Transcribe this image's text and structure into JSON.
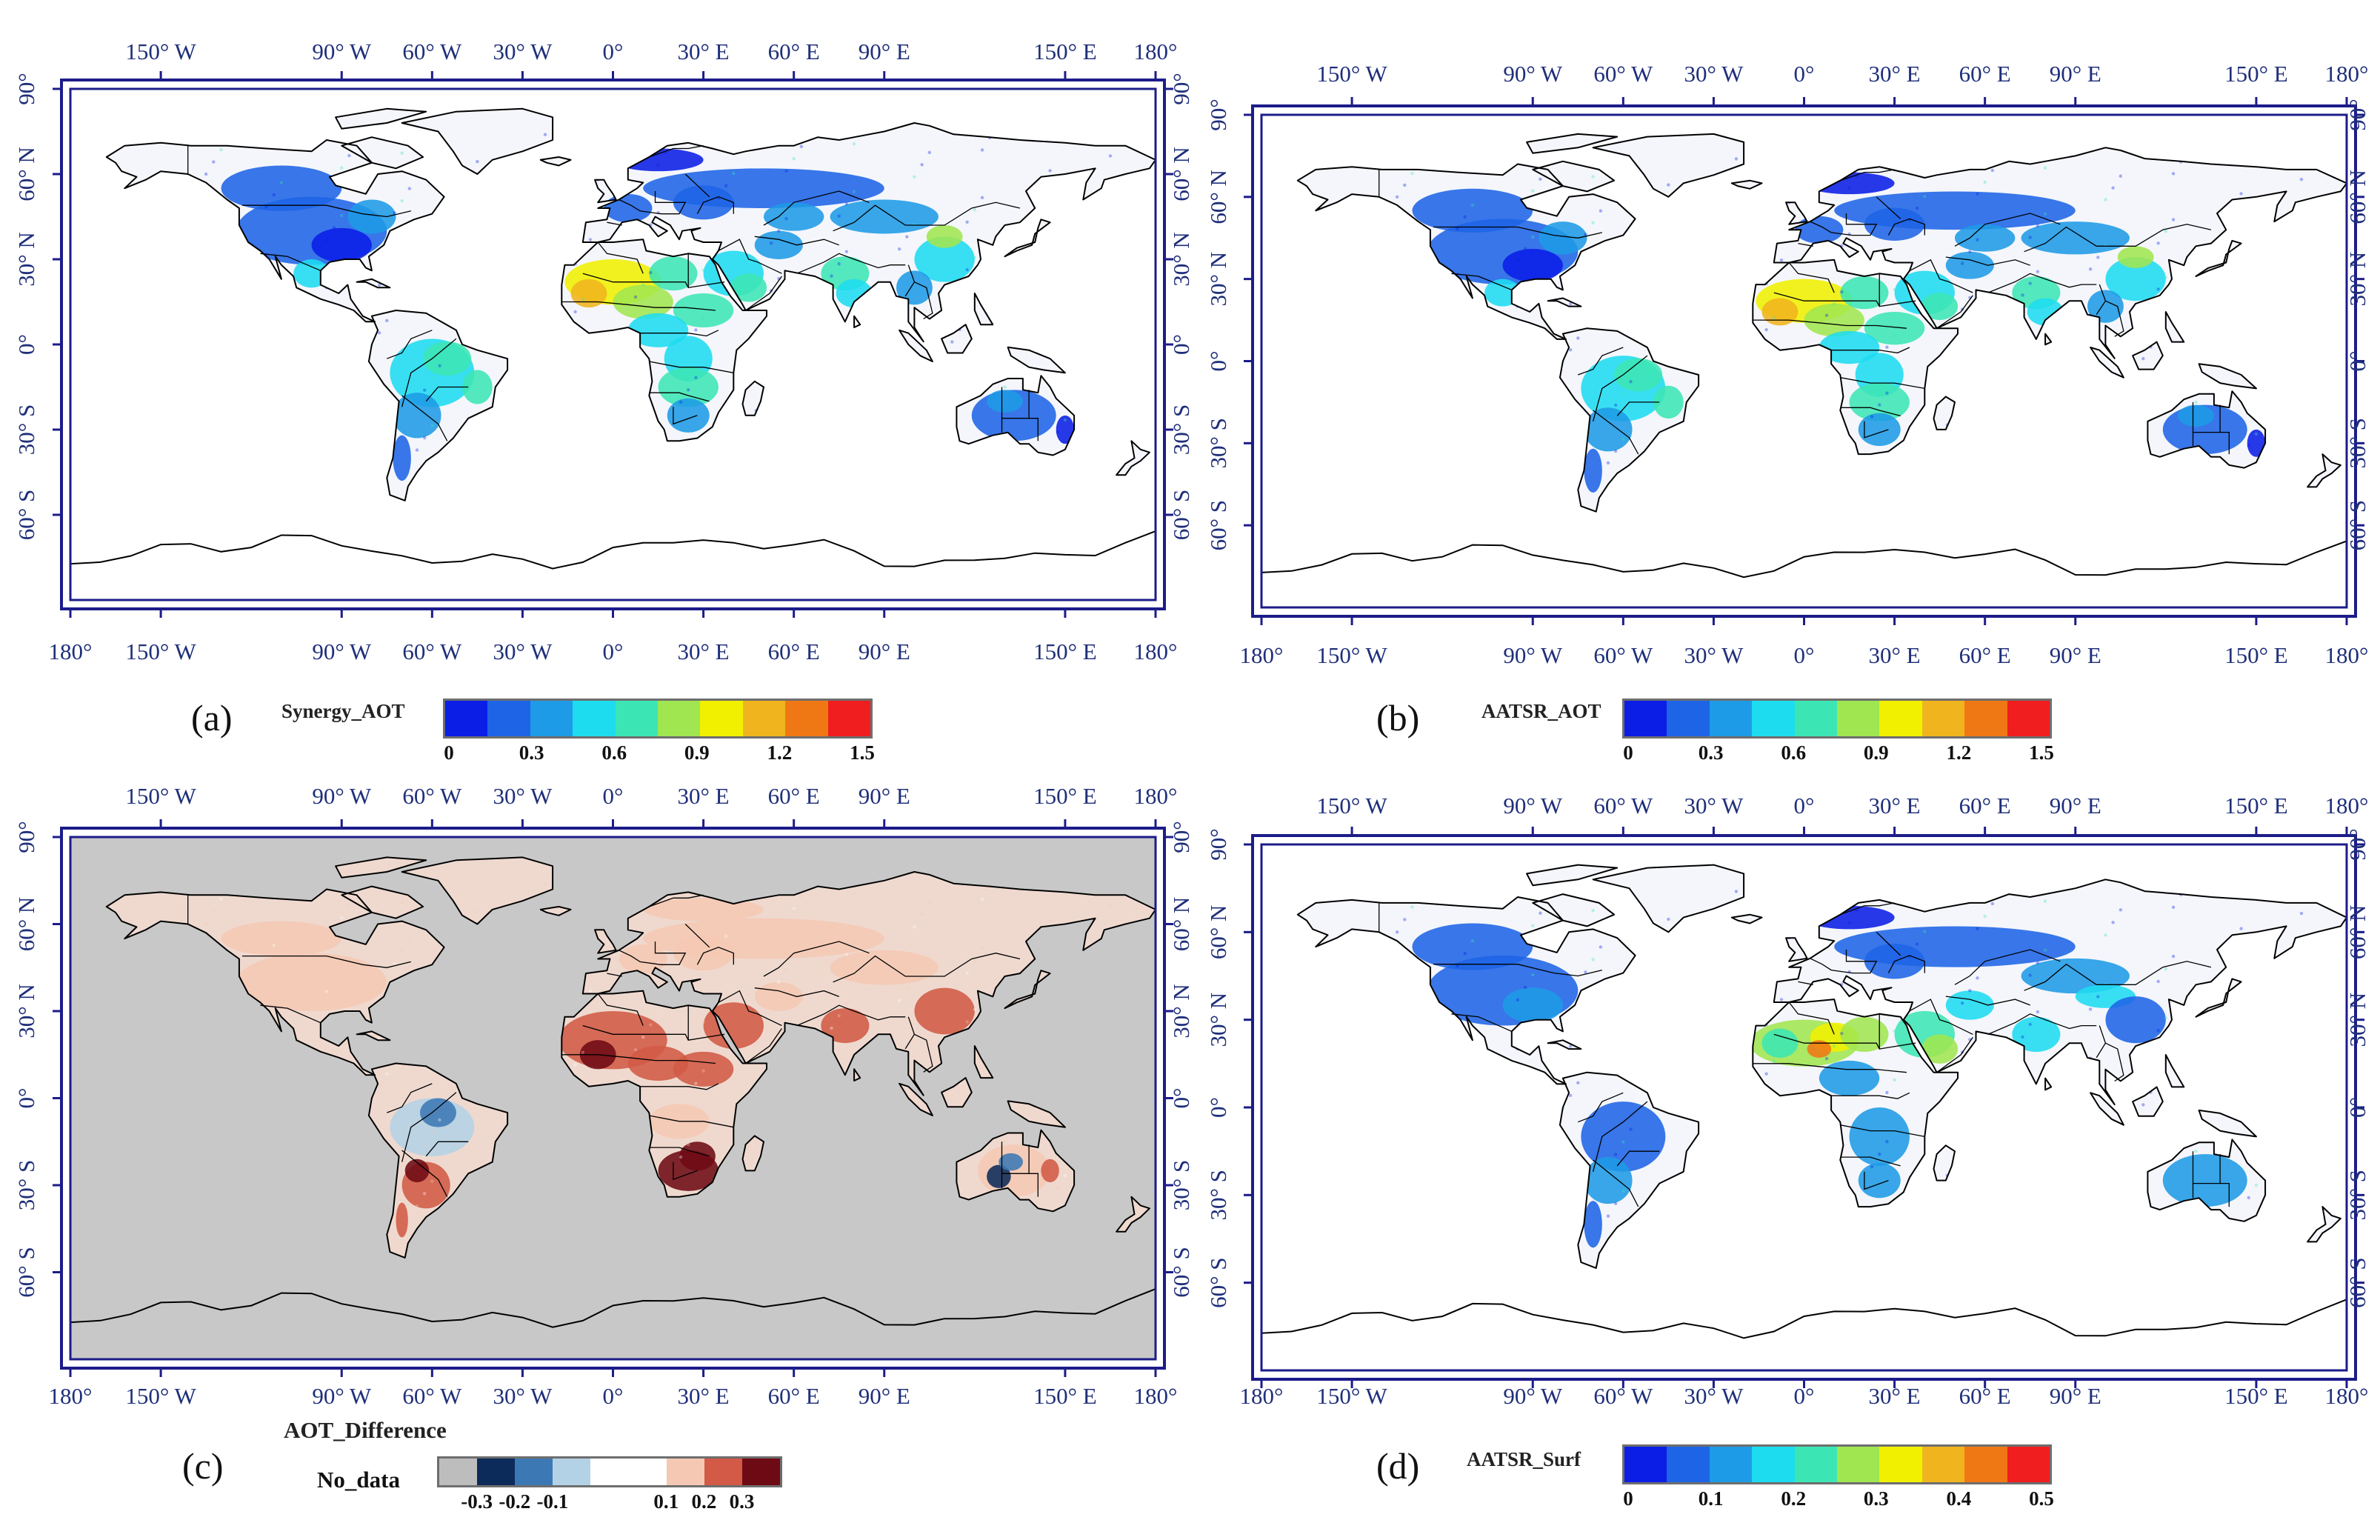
{
  "axis_labels": {
    "lon_top": [
      {
        "label": "150° W",
        "lon": -150
      },
      {
        "label": "90° W",
        "lon": -90
      },
      {
        "label": "60° W",
        "lon": -60
      },
      {
        "label": "30° W",
        "lon": -30
      },
      {
        "label": "0°",
        "lon": 0
      },
      {
        "label": "30° E",
        "lon": 30
      },
      {
        "label": "60° E",
        "lon": 60
      },
      {
        "label": "90° E",
        "lon": 90
      },
      {
        "label": "150° E",
        "lon": 150
      },
      {
        "label": "180°",
        "lon": 180
      }
    ],
    "lon_bottom": [
      {
        "label": "180°",
        "lon": -180
      },
      {
        "label": "150° W",
        "lon": -150
      },
      {
        "label": "90° W",
        "lon": -90
      },
      {
        "label": "60° W",
        "lon": -60
      },
      {
        "label": "30° W",
        "lon": -30
      },
      {
        "label": "0°",
        "lon": 0
      },
      {
        "label": "30° E",
        "lon": 30
      },
      {
        "label": "60° E",
        "lon": 60
      },
      {
        "label": "90° E",
        "lon": 90
      },
      {
        "label": "150° E",
        "lon": 150
      },
      {
        "label": "180°",
        "lon": 180
      }
    ],
    "lat": [
      {
        "label": "90°",
        "lat": 90
      },
      {
        "label": "60° N",
        "lat": 60
      },
      {
        "label": "30° N",
        "lat": 30
      },
      {
        "label": "0°",
        "lat": 0
      },
      {
        "label": "30° S",
        "lat": -30
      },
      {
        "label": "60° S",
        "lat": -60
      }
    ]
  },
  "map_extent": {
    "lon": [
      -180,
      180
    ],
    "lat": [
      -90,
      90
    ]
  },
  "colors": {
    "frame": "#1c1c8a",
    "axis_text": "#1f2f7a",
    "coast": "#000000",
    "difference_background": "#c8c8c8"
  },
  "panels": [
    {
      "label": "(a)",
      "colorbar_title": "Synergy_AOT",
      "style": "aot",
      "colors": [
        "#0a1ee6",
        "#1e64e6",
        "#1e9be6",
        "#1edcf0",
        "#3ce6b4",
        "#a0e650",
        "#f0f000",
        "#f0b41e",
        "#f07814",
        "#f01e1e"
      ],
      "ticks": [
        "0",
        "0.3",
        "0.6",
        "0.9",
        "1.2",
        "1.5"
      ]
    },
    {
      "label": "(b)",
      "colorbar_title": "AATSR_AOT",
      "style": "aot",
      "colors": [
        "#0a1ee6",
        "#1e64e6",
        "#1e9be6",
        "#1edcf0",
        "#3ce6b4",
        "#a0e650",
        "#f0f000",
        "#f0b41e",
        "#f07814",
        "#f01e1e"
      ],
      "ticks": [
        "0",
        "0.3",
        "0.6",
        "0.9",
        "1.2",
        "1.5"
      ]
    },
    {
      "label": "(c)",
      "colorbar_title": "AOT_Difference",
      "style": "diff",
      "nodata_label": "No_data",
      "colors": [
        "#bdbdbd",
        "#0c2a5a",
        "#3c78b4",
        "#b4d2e6",
        "#ffffff",
        "#ffffff",
        "#f5c8b4",
        "#d25a46",
        "#6e0a14"
      ],
      "ticks": [
        "-0.3",
        "-0.2",
        "-0.1",
        "0.1",
        "0.2",
        "0.3"
      ]
    },
    {
      "label": "(d)",
      "colorbar_title": "AATSR_Surf",
      "style": "surf",
      "colors": [
        "#0a1ee6",
        "#1e64e6",
        "#1e9be6",
        "#1edcf0",
        "#3ce6b4",
        "#a0e650",
        "#f0f000",
        "#f0b41e",
        "#f07814",
        "#f01e1e"
      ],
      "ticks": [
        "0",
        "0.1",
        "0.2",
        "0.3",
        "0.4",
        "0.5"
      ]
    }
  ]
}
